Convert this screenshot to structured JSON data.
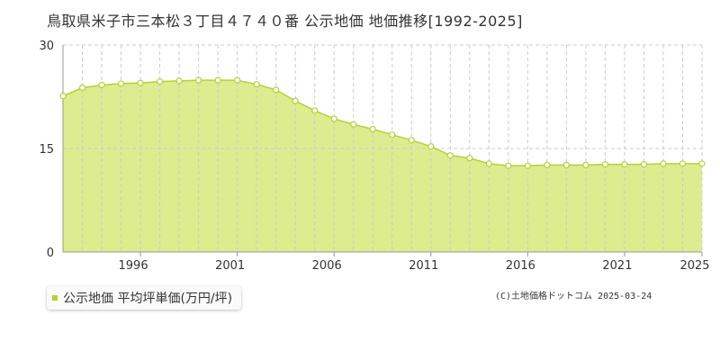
{
  "title": "鳥取県米子市三本松３丁目４７４０番 公示地価 地価推移[1992-2025]",
  "legend": {
    "label": "公示地価 平均坪単価(万円/坪)"
  },
  "copyright": "(C)土地価格ドットコム 2025-03-24",
  "colors": {
    "fill": "#dcec8f",
    "line": "#b5d136",
    "point_fill": "#ffffff",
    "grid": "#cccccc",
    "axis": "#999999"
  },
  "chart_data": {
    "type": "area",
    "title": "鳥取県米子市三本松３丁目４７４０番 公示地価 地価推移[1992-2025]",
    "series": [
      {
        "name": "公示地価 平均坪単価(万円/坪)",
        "x": [
          1992,
          1993,
          1994,
          1995,
          1996,
          1997,
          1998,
          1999,
          2000,
          2001,
          2002,
          2003,
          2004,
          2005,
          2006,
          2007,
          2008,
          2009,
          2010,
          2011,
          2012,
          2013,
          2014,
          2015,
          2016,
          2017,
          2018,
          2019,
          2020,
          2021,
          2022,
          2023,
          2024,
          2025
        ],
        "values": [
          22.6,
          23.8,
          24.2,
          24.4,
          24.5,
          24.7,
          24.8,
          24.9,
          24.9,
          24.9,
          24.3,
          23.5,
          21.9,
          20.5,
          19.3,
          18.5,
          17.8,
          17.0,
          16.2,
          15.3,
          14.0,
          13.6,
          12.8,
          12.5,
          12.5,
          12.6,
          12.6,
          12.6,
          12.7,
          12.7,
          12.7,
          12.8,
          12.8,
          12.8
        ]
      }
    ],
    "xlim": [
      1992,
      2025
    ],
    "ylim": [
      0,
      30
    ],
    "yticks": [
      0,
      15,
      30
    ],
    "xticks": [
      1996,
      2001,
      2006,
      2011,
      2016,
      2021,
      2025
    ],
    "grid": true
  }
}
